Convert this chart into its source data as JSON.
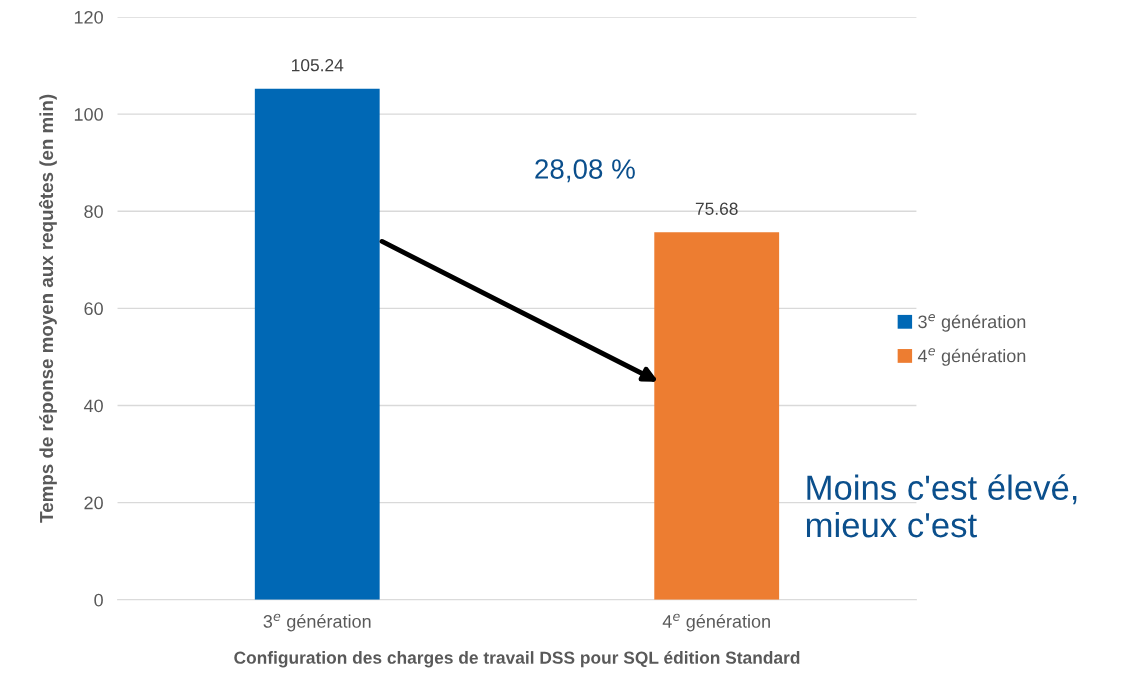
{
  "chart_data": {
    "type": "bar",
    "categories": [
      "3$^{e}$ génération",
      "4$^{e}$ génération"
    ],
    "series": [
      {
        "name": "3$^{e}$ génération",
        "color": "#0068b5",
        "values": [
          105.24,
          null
        ]
      },
      {
        "name": "4$^{e}$ génération",
        "color": "#ed7d31",
        "values": [
          null,
          75.68
        ]
      }
    ],
    "xlabel": "Configuration des charges de travail DSS pour SQL édition Standard",
    "ylabel": "Temps de réponse moyen aux requêtes (en min)",
    "ylim": [
      0,
      120
    ],
    "yticks": [
      0,
      20,
      40,
      60,
      80,
      100,
      120
    ],
    "grid": "y",
    "legend": "right",
    "data_labels": true,
    "annotations": [
      "28,08 %",
      "Moins c'est élevé,\nmieux c'est"
    ]
  }
}
